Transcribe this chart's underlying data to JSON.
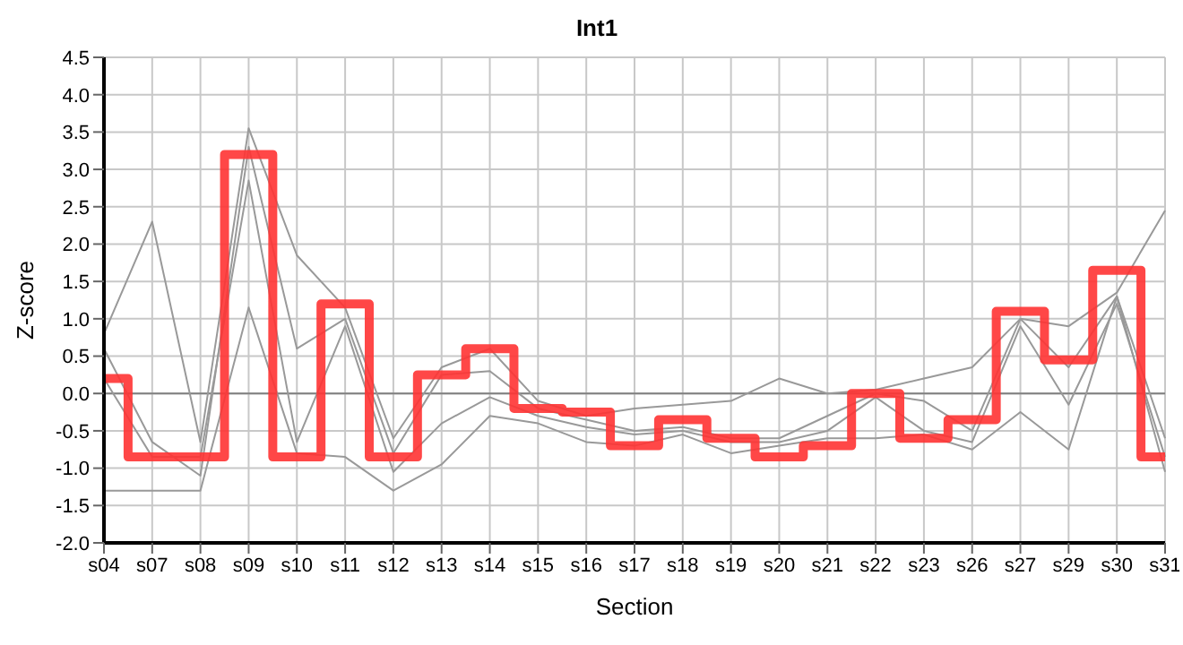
{
  "chart_data": {
    "type": "line",
    "title": "Int1",
    "xlabel": "Section",
    "ylabel": "Z-score",
    "categories": [
      "s04",
      "s07",
      "s08",
      "s09",
      "s10",
      "s11",
      "s12",
      "s13",
      "s14",
      "s15",
      "s16",
      "s17",
      "s18",
      "s19",
      "s20",
      "s21",
      "s22",
      "s23",
      "s26",
      "s27",
      "s29",
      "s30",
      "s31"
    ],
    "series": [
      {
        "color": "#999999",
        "values": [
          0.8,
          2.3,
          -0.65,
          3.55,
          1.85,
          1.15,
          -0.6,
          0.35,
          0.6,
          -0.1,
          -0.3,
          -0.2,
          -0.15,
          -0.1,
          0.2,
          0.0,
          0.05,
          0.2,
          0.35,
          1.0,
          0.9,
          1.35,
          2.45
        ]
      },
      {
        "color": "#999999",
        "values": [
          0.6,
          -0.65,
          -1.1,
          3.3,
          0.6,
          1.0,
          -0.8,
          0.25,
          0.3,
          -0.2,
          -0.35,
          -0.5,
          -0.45,
          -0.6,
          -0.6,
          -0.3,
          0.0,
          -0.1,
          -0.5,
          1.0,
          0.35,
          1.3,
          -0.6
        ]
      },
      {
        "color": "#999999",
        "values": [
          0.2,
          -0.85,
          -0.85,
          2.85,
          -0.65,
          0.9,
          -1.05,
          -0.4,
          -0.05,
          -0.3,
          -0.45,
          -0.55,
          -0.5,
          -0.65,
          -0.65,
          -0.5,
          -0.05,
          -0.5,
          -0.65,
          0.9,
          -0.15,
          1.2,
          -0.85
        ]
      },
      {
        "color": "#999999",
        "values": [
          -1.3,
          -1.3,
          -1.3,
          1.15,
          -0.8,
          -0.85,
          -1.3,
          -0.95,
          -0.3,
          -0.4,
          -0.65,
          -0.7,
          -0.55,
          -0.8,
          -0.7,
          -0.6,
          -0.6,
          -0.55,
          -0.75,
          -0.25,
          -0.75,
          1.3,
          -1.05
        ]
      },
      {
        "type": "step",
        "color": "#ff3333",
        "values": [
          0.2,
          -0.85,
          -0.85,
          3.2,
          -0.85,
          1.2,
          -0.85,
          0.25,
          0.6,
          -0.2,
          -0.25,
          -0.7,
          -0.35,
          -0.6,
          -0.85,
          -0.7,
          0.0,
          -0.6,
          -0.35,
          1.1,
          0.45,
          1.65,
          -0.85
        ]
      }
    ],
    "ylim": [
      -2,
      4.5
    ],
    "yticks": [
      {
        "value": -2,
        "label": "-2.0"
      },
      -1.5,
      {
        "value": -1,
        "label": "-1.0"
      },
      -0.5,
      {
        "value": 0,
        "label": "0.0"
      },
      0.5,
      {
        "value": 1,
        "label": "1.0"
      },
      1.5,
      {
        "value": 2,
        "label": "2.0"
      },
      2.5,
      {
        "value": 3,
        "label": "3.0"
      },
      3.5,
      {
        "value": 4,
        "label": "4.0"
      },
      4.5
    ],
    "grid": true,
    "marker": "none",
    "ref_lines": [
      {
        "axis": "y",
        "value": 0,
        "color": "#808080"
      }
    ]
  }
}
